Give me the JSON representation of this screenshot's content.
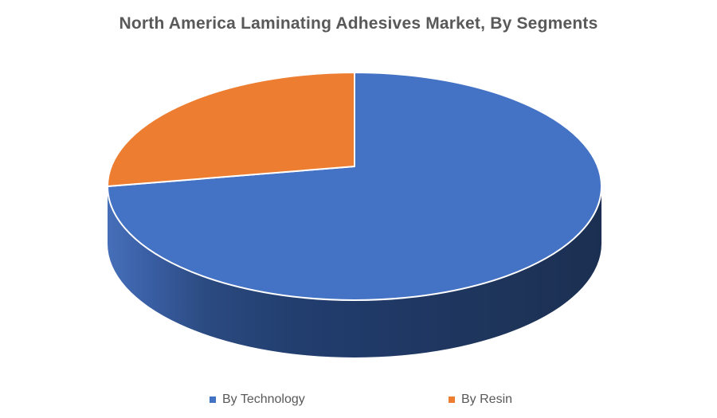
{
  "chart_data": {
    "type": "pie",
    "style": "3d",
    "title": "North America Laminating Adhesives Market, By Segments",
    "segments": [
      {
        "label": "By Technology",
        "value": 75,
        "color": "#4472C4"
      },
      {
        "label": "By Resin",
        "value": 25,
        "color": "#ED7D31"
      }
    ],
    "values_unit": "percent",
    "values_estimated": true,
    "data_labels": false,
    "start_angle_deg": 0,
    "direction": "clockwise",
    "legend_position": "bottom",
    "background_color": "#FFFFFF",
    "title_color": "#595959",
    "legend_text_color": "#595959",
    "slice_border_color": "#FFFFFF"
  }
}
